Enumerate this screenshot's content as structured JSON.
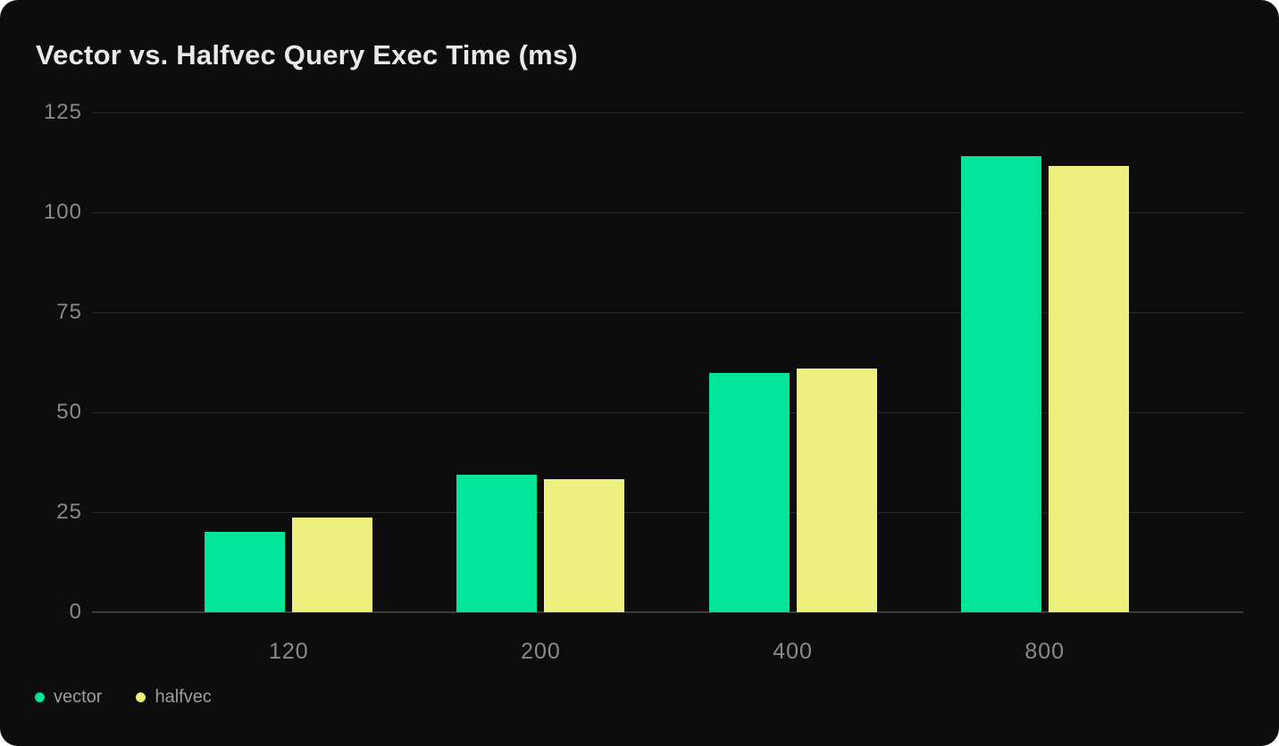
{
  "chart_data": {
    "type": "bar",
    "title": "Vector vs. Halfvec Query Exec Time (ms)",
    "categories": [
      "120",
      "200",
      "400",
      "800"
    ],
    "series": [
      {
        "name": "vector",
        "color": "#00e599",
        "values": [
          20.0,
          34.3,
          59.9,
          114.1
        ]
      },
      {
        "name": "halfvec",
        "color": "#eef07e",
        "values": [
          23.6,
          33.3,
          60.9,
          111.5
        ]
      }
    ],
    "xlabel": "",
    "ylabel": "",
    "y_ticks": [
      0,
      25,
      50,
      75,
      100,
      125
    ],
    "ylim": [
      0,
      125
    ],
    "grid": true,
    "legend_position": "bottom-left",
    "background": "#0d0d0d",
    "title_color": "#e9e9e9",
    "tick_color": "#8a8a8a",
    "gridline_color": "#2a2a2a",
    "baseline_color": "#3a3a3a"
  }
}
